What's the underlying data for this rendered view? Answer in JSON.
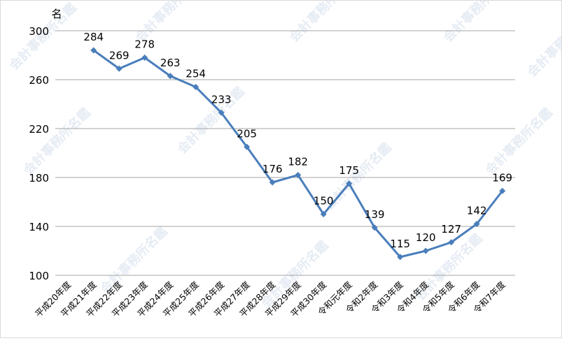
{
  "chart_data": {
    "type": "line",
    "title": "",
    "unit_label": "名",
    "xlabel": "",
    "ylabel": "",
    "ylim": [
      100,
      300
    ],
    "yticks": [
      100,
      140,
      180,
      220,
      260,
      300
    ],
    "grid": true,
    "legend": "none",
    "categories": [
      "平成20年度",
      "平成21年度",
      "平成22年度",
      "平成23年度",
      "平成24年度",
      "平成25年度",
      "平成26年度",
      "平成27年度",
      "平成28年度",
      "平成29年度",
      "平成30年度",
      "令和元年度",
      "令和2年度",
      "令和3年度",
      "令和4年度",
      "令和5年度",
      "令和6年度",
      "令和7年度"
    ],
    "series": [
      {
        "values": [
          null,
          284,
          269,
          278,
          263,
          254,
          233,
          205,
          176,
          182,
          150,
          175,
          139,
          115,
          120,
          127,
          142,
          169
        ],
        "color": "#4a7ebb"
      }
    ]
  },
  "watermark": "会計事務所名鑑"
}
